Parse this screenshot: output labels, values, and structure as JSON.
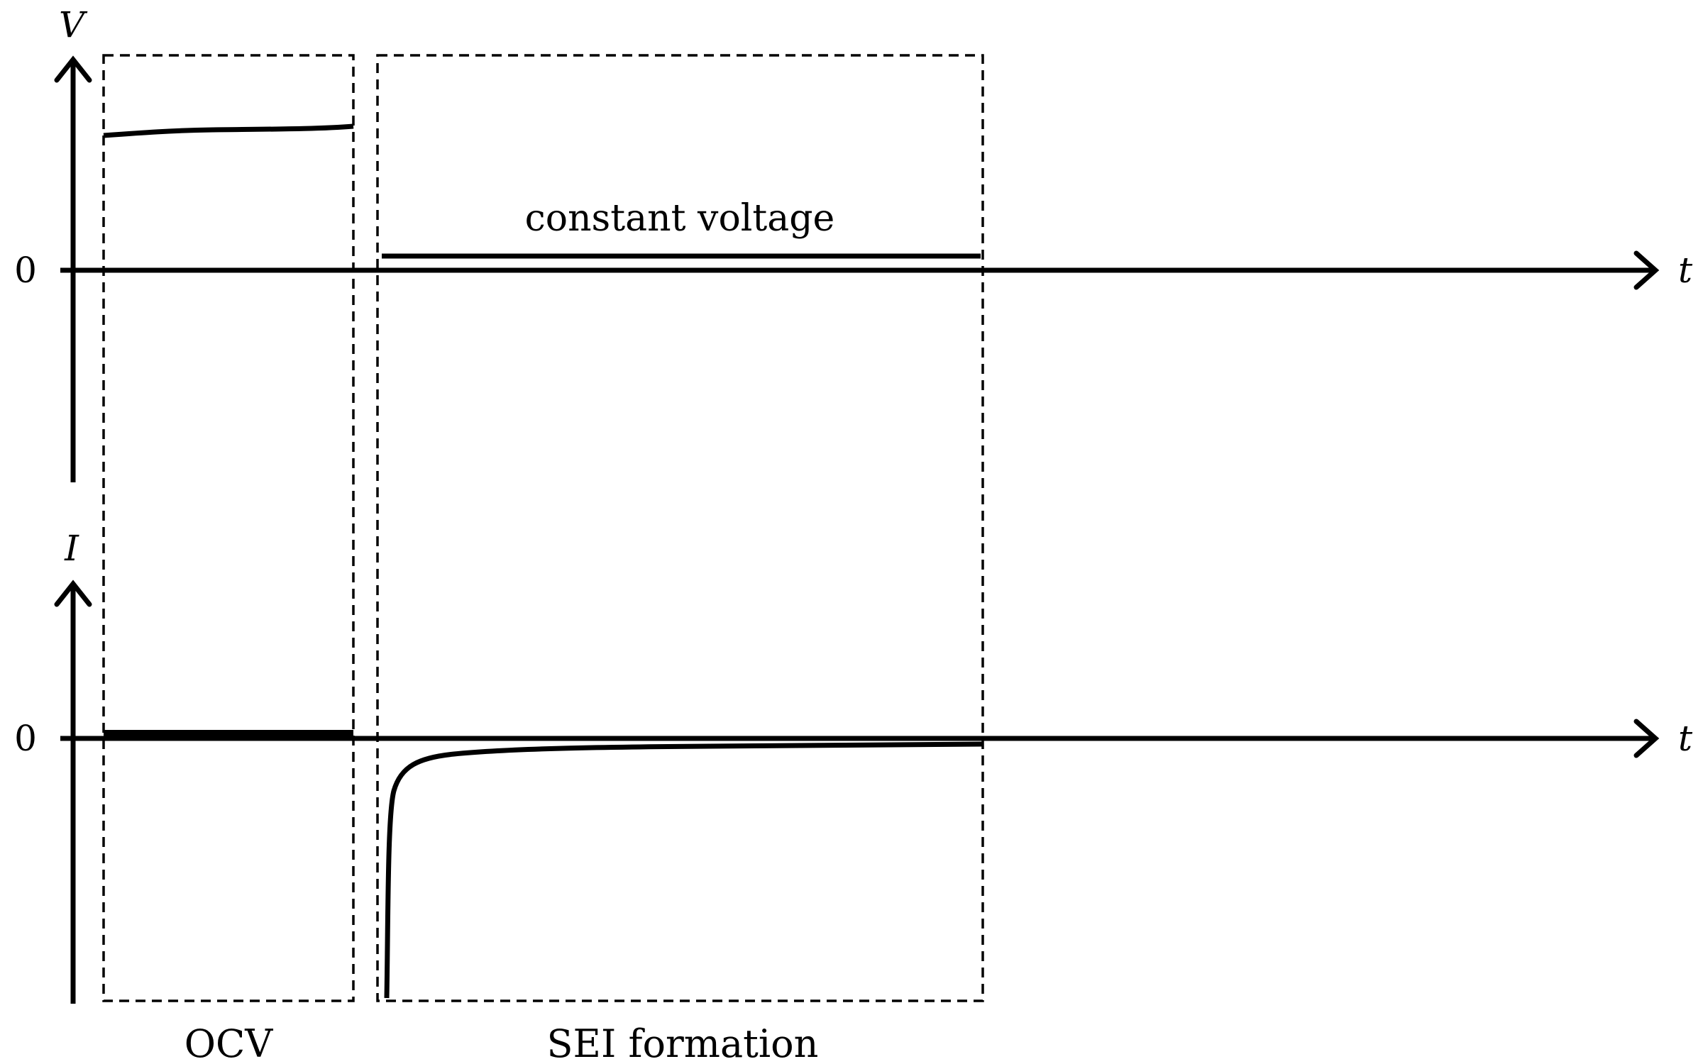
{
  "voltage_plot": {
    "y_axis_label": "V",
    "x_axis_label": "t",
    "zero_label": "0",
    "annotation": "constant voltage"
  },
  "current_plot": {
    "y_axis_label": "I",
    "x_axis_label": "t",
    "zero_label": "0"
  },
  "regions": {
    "ocv_label": "OCV",
    "sei_label": "SEI formation"
  }
}
